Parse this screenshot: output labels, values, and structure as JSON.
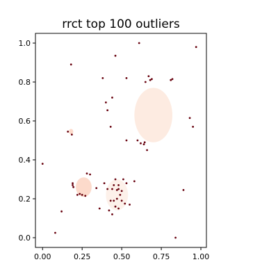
{
  "chart_data": {
    "type": "scatter",
    "title": "rrct top 100 outliers",
    "xlabel": "",
    "ylabel": "",
    "xlim": [
      -0.045,
      1.035
    ],
    "ylim": [
      -0.05,
      1.05
    ],
    "xticks": [
      0.0,
      0.25,
      0.5,
      0.75,
      1.0
    ],
    "xtick_labels": [
      "0.00",
      "0.25",
      "0.50",
      "0.75",
      "1.00"
    ],
    "yticks": [
      0.0,
      0.2,
      0.4,
      0.6,
      0.8,
      1.0
    ],
    "ytick_labels": [
      "0.0",
      "0.2",
      "0.4",
      "0.6",
      "0.8",
      "1.0"
    ],
    "grid": false,
    "legend": "none",
    "background_clusters": [
      {
        "cx": 0.7,
        "cy": 0.63,
        "rx": 0.12,
        "ry": 0.14,
        "color": "#fde8dc"
      },
      {
        "cx": 0.26,
        "cy": 0.26,
        "rx": 0.05,
        "ry": 0.05,
        "color": "#fbd3c2"
      },
      {
        "cx": 0.47,
        "cy": 0.22,
        "rx": 0.07,
        "ry": 0.08,
        "color": "#fdeee6"
      },
      {
        "cx": 0.18,
        "cy": 0.545,
        "rx": 0.014,
        "ry": 0.014,
        "color": "#fbd3c2"
      }
    ],
    "outlier_color": "#67000d",
    "outliers": [
      [
        0.0,
        0.38
      ],
      [
        0.08,
        0.025
      ],
      [
        0.12,
        0.135
      ],
      [
        0.18,
        0.89
      ],
      [
        0.16,
        0.545
      ],
      [
        0.185,
        0.53
      ],
      [
        0.19,
        0.28
      ],
      [
        0.19,
        0.27
      ],
      [
        0.195,
        0.26
      ],
      [
        0.22,
        0.22
      ],
      [
        0.235,
        0.225
      ],
      [
        0.25,
        0.22
      ],
      [
        0.27,
        0.215
      ],
      [
        0.28,
        0.33
      ],
      [
        0.3,
        0.325
      ],
      [
        0.34,
        0.255
      ],
      [
        0.36,
        0.15
      ],
      [
        0.38,
        0.82
      ],
      [
        0.4,
        0.695
      ],
      [
        0.41,
        0.655
      ],
      [
        0.39,
        0.28
      ],
      [
        0.41,
        0.25
      ],
      [
        0.43,
        0.57
      ],
      [
        0.44,
        0.72
      ],
      [
        0.46,
        0.935
      ],
      [
        0.42,
        0.14
      ],
      [
        0.43,
        0.19
      ],
      [
        0.44,
        0.25
      ],
      [
        0.45,
        0.27
      ],
      [
        0.46,
        0.3
      ],
      [
        0.45,
        0.19
      ],
      [
        0.46,
        0.16
      ],
      [
        0.47,
        0.245
      ],
      [
        0.47,
        0.2
      ],
      [
        0.48,
        0.27
      ],
      [
        0.48,
        0.15
      ],
      [
        0.49,
        0.22
      ],
      [
        0.5,
        0.24
      ],
      [
        0.5,
        0.19
      ],
      [
        0.51,
        0.3
      ],
      [
        0.52,
        0.175
      ],
      [
        0.53,
        0.28
      ],
      [
        0.53,
        0.82
      ],
      [
        0.53,
        0.5
      ],
      [
        0.55,
        0.17
      ],
      [
        0.44,
        0.12
      ],
      [
        0.48,
        0.25
      ],
      [
        0.58,
        0.29
      ],
      [
        0.6,
        0.5
      ],
      [
        0.61,
        1.0
      ],
      [
        0.62,
        0.485
      ],
      [
        0.64,
        0.48
      ],
      [
        0.645,
        0.49
      ],
      [
        0.65,
        0.8
      ],
      [
        0.66,
        0.45
      ],
      [
        0.67,
        0.83
      ],
      [
        0.68,
        0.81
      ],
      [
        0.69,
        0.815
      ],
      [
        0.81,
        0.81
      ],
      [
        0.82,
        0.815
      ],
      [
        0.84,
        0.0
      ],
      [
        0.89,
        0.245
      ],
      [
        0.93,
        0.615
      ],
      [
        0.95,
        0.57
      ],
      [
        0.97,
        0.98
      ]
    ]
  }
}
